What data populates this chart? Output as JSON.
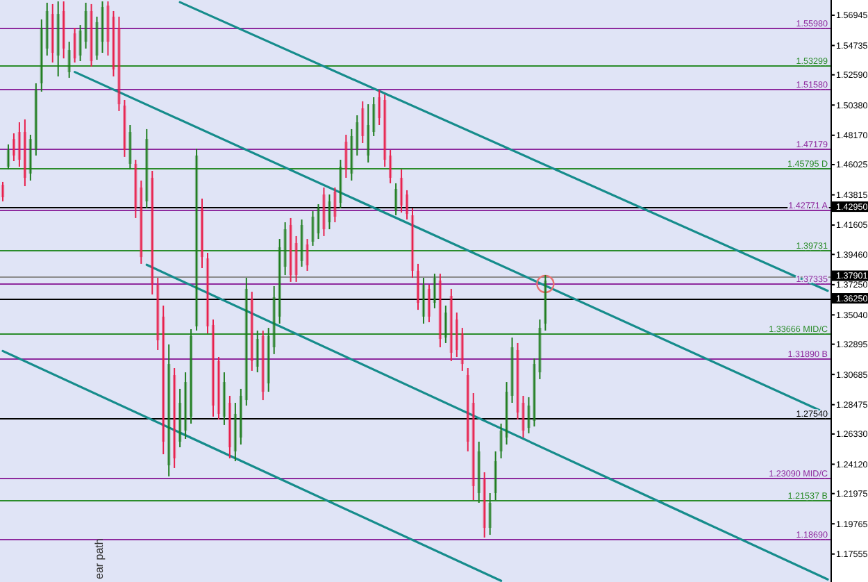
{
  "chart_data": {
    "type": "candlestick",
    "categories": [
      null,
      null,
      null,
      null,
      null,
      null,
      null,
      null,
      null,
      null,
      null,
      null,
      null,
      null,
      null,
      null,
      null,
      null,
      null,
      null,
      null,
      null,
      null,
      null,
      null,
      null,
      null,
      null,
      null,
      null,
      null,
      null,
      null,
      null,
      null,
      null,
      null,
      null,
      null,
      null,
      null,
      null,
      null,
      null,
      null,
      null,
      null,
      null,
      null,
      null,
      null,
      null,
      null,
      null,
      null,
      null,
      null,
      null,
      null,
      null,
      null,
      null,
      null,
      null,
      null,
      null,
      null,
      null,
      null,
      null,
      null,
      null,
      null,
      null,
      null,
      null,
      null,
      null,
      null,
      null,
      null,
      null,
      null,
      null,
      null,
      null,
      null,
      null,
      null,
      null,
      null,
      null,
      null,
      null,
      null,
      null,
      null,
      null,
      null,
      null,
      null,
      null,
      null,
      null,
      null,
      null,
      null,
      null,
      null,
      null,
      null,
      null,
      null,
      null,
      null,
      null,
      null,
      null,
      null,
      null,
      null,
      null,
      null,
      null,
      null,
      null,
      null,
      null,
      null,
      null,
      null,
      null,
      null,
      null,
      null,
      null,
      null,
      null,
      null,
      null,
      null,
      null,
      null,
      null,
      null,
      null,
      null,
      null,
      null,
      null
    ],
    "ohlc": [
      [
        1.4455,
        1.4476,
        1.4334,
        1.4364
      ],
      [
        1.4587,
        1.475,
        1.4567,
        1.4709
      ],
      [
        1.479,
        1.4831,
        1.4628,
        1.4669
      ],
      [
        1.4841,
        1.4912,
        1.4587,
        1.4638
      ],
      [
        1.4841,
        1.4933,
        1.4445,
        1.4506
      ],
      [
        1.4537,
        1.4821,
        1.4486,
        1.479
      ],
      [
        1.4709,
        1.5197,
        1.4669,
        1.5146
      ],
      [
        1.5197,
        1.5664,
        1.5136,
        1.5603
      ],
      [
        1.5451,
        1.5786,
        1.54,
        1.5725
      ],
      [
        1.5704,
        1.5776,
        1.5349,
        1.542
      ],
      [
        1.54,
        1.5796,
        1.5247,
        1.5704
      ],
      [
        1.5725,
        1.5796,
        1.5379,
        1.5451
      ],
      [
        1.5278,
        1.5501,
        1.5237,
        1.544
      ],
      [
        1.5562,
        1.5603,
        1.5349,
        1.5379
      ],
      [
        1.54,
        1.5623,
        1.5359,
        1.5583
      ],
      [
        1.5501,
        1.5786,
        1.5451,
        1.5725
      ],
      [
        1.5725,
        1.5776,
        1.5319,
        1.5359
      ],
      [
        1.54,
        1.5684,
        1.5369,
        1.5644
      ],
      [
        1.5501,
        1.5796,
        1.542,
        1.5755
      ],
      [
        1.5765,
        1.5796,
        1.54,
        1.5501
      ],
      [
        1.5684,
        1.5725,
        1.5247,
        1.5298
      ],
      [
        1.5603,
        1.5684,
        1.4994,
        1.5044
      ],
      [
        1.5034,
        1.5075,
        1.4659,
        1.4709
      ],
      [
        1.4608,
        1.4892,
        1.4567,
        1.4841
      ],
      [
        1.4608,
        1.4638,
        1.4212,
        1.4283
      ],
      [
        1.4435,
        1.4486,
        1.3877,
        1.3927
      ],
      [
        1.4334,
        1.4862,
        1.4283,
        1.479
      ],
      [
        1.4506,
        1.4557,
        1.3653,
        1.3724
      ],
      [
        1.3724,
        1.3775,
        1.3247,
        1.3318
      ],
      [
        1.3491,
        1.3572,
        1.2485,
        1.2577
      ],
      [
        1.2404,
        1.3288,
        1.2323,
        1.3145
      ],
      [
        1.3064,
        1.3115,
        1.2384,
        1.2455
      ],
      [
        1.2577,
        1.2963,
        1.2536,
        1.2861
      ],
      [
        1.2658,
        1.3084,
        1.2597,
        1.3013
      ],
      [
        1.276,
        1.3399,
        1.2709,
        1.3349
      ],
      [
        1.342,
        1.4719,
        1.3389,
        1.4669
      ],
      [
        1.4283,
        1.4354,
        1.3846,
        1.3927
      ],
      [
        1.3917,
        1.3958,
        1.3369,
        1.342
      ],
      [
        1.343,
        1.347,
        1.276,
        1.2841
      ],
      [
        1.3166,
        1.3196,
        1.2739,
        1.278
      ],
      [
        1.276,
        1.3084,
        1.2699,
        1.3013
      ],
      [
        1.2861,
        1.2912,
        1.2455,
        1.2536
      ],
      [
        1.2506,
        1.2861,
        1.2434,
        1.278
      ],
      [
        1.2607,
        1.2963,
        1.2556,
        1.2912
      ],
      [
        1.2881,
        1.3775,
        1.2841,
        1.3694
      ],
      [
        1.3623,
        1.3673,
        1.3095,
        1.3166
      ],
      [
        1.3125,
        1.3389,
        1.3084,
        1.3328
      ],
      [
        1.3349,
        1.3389,
        1.2881,
        1.2942
      ],
      [
        1.3003,
        1.3409,
        1.2942,
        1.3349
      ],
      [
        1.3267,
        1.3714,
        1.3217,
        1.3633
      ],
      [
        1.3491,
        1.4059,
        1.344,
        1.3998
      ],
      [
        1.3856,
        1.4181,
        1.3795,
        1.413
      ],
      [
        1.4161,
        1.4212,
        1.3745,
        1.3795
      ],
      [
        1.4029,
        1.408,
        1.3745,
        1.3795
      ],
      [
        1.3897,
        1.4201,
        1.3856,
        1.4161
      ],
      [
        1.4019,
        1.4059,
        1.3826,
        1.3866
      ],
      [
        1.4039,
        1.4262,
        1.4009,
        1.4222
      ],
      [
        1.41,
        1.4313,
        1.4059,
        1.4283
      ],
      [
        1.4384,
        1.4435,
        1.408,
        1.413
      ],
      [
        1.4181,
        1.4384,
        1.413,
        1.4334
      ],
      [
        1.4405,
        1.4435,
        1.4181,
        1.4222
      ],
      [
        1.4323,
        1.4638,
        1.4283,
        1.4587
      ],
      [
        1.477,
        1.4821,
        1.4506,
        1.4567
      ],
      [
        1.4537,
        1.4862,
        1.4486,
        1.4811
      ],
      [
        1.4709,
        1.4963,
        1.4669,
        1.4912
      ],
      [
        1.5014,
        1.5065,
        1.476,
        1.4811
      ],
      [
        1.4669,
        1.5044,
        1.4618,
        1.4892
      ],
      [
        1.4841,
        1.5095,
        1.4811,
        1.5044
      ],
      [
        1.5095,
        1.5146,
        1.4892,
        1.4943
      ],
      [
        1.5075,
        1.5115,
        1.4587,
        1.4638
      ],
      [
        1.4669,
        1.4709,
        1.4466,
        1.4506
      ],
      [
        1.4262,
        1.4466,
        1.4232,
        1.4425
      ],
      [
        1.4506,
        1.4567,
        1.4252,
        1.4303
      ],
      [
        1.4384,
        1.4415,
        1.4201,
        1.4242
      ],
      [
        1.4232,
        1.4283,
        1.3775,
        1.3826
      ],
      [
        1.3826,
        1.3877,
        1.3541,
        1.3592
      ],
      [
        1.3491,
        1.3775,
        1.344,
        1.3724
      ],
      [
        1.3694,
        1.3724,
        1.345,
        1.3491
      ],
      [
        1.3592,
        1.3805,
        1.3552,
        1.3775
      ],
      [
        1.3755,
        1.3805,
        1.3267,
        1.3328
      ],
      [
        1.3338,
        1.3572,
        1.3298,
        1.3521
      ],
      [
        1.3643,
        1.3694,
        1.3166,
        1.3227
      ],
      [
        1.347,
        1.3521,
        1.3196,
        1.3247
      ],
      [
        1.3369,
        1.3409,
        1.3095,
        1.3145
      ],
      [
        1.3064,
        1.3115,
        1.2506,
        1.2577
      ],
      [
        1.2861,
        1.2932,
        1.215,
        1.2252
      ],
      [
        1.2201,
        1.2577,
        1.213,
        1.2506
      ],
      [
        1.2303,
        1.2353,
        1.1876,
        1.1947
      ],
      [
        1.1947,
        1.2201,
        1.1896,
        1.213
      ],
      [
        1.2201,
        1.2506,
        1.215,
        1.2434
      ],
      [
        1.2506,
        1.2709,
        1.2455,
        1.2658
      ],
      [
        1.2607,
        1.3013,
        1.2556,
        1.2942
      ],
      [
        1.2912,
        1.3338,
        1.2861,
        1.3267
      ],
      [
        1.3247,
        1.3298,
        1.2739,
        1.279
      ],
      [
        1.2861,
        1.2912,
        1.2607,
        1.2658
      ],
      [
        1.2678,
        1.2902,
        1.2638,
        1.2841
      ],
      [
        1.2729,
        1.3186,
        1.2688,
        1.3145
      ],
      [
        1.3084,
        1.347,
        1.3034,
        1.3409
      ],
      [
        1.344,
        1.3795,
        1.3389,
        1.3755
      ],
      null,
      null,
      null,
      null,
      null,
      null,
      null,
      null,
      null,
      null,
      null,
      null,
      null,
      null,
      null,
      null,
      null,
      null,
      null,
      null,
      null,
      null,
      null,
      null,
      null,
      null,
      null,
      null,
      null,
      null,
      null,
      null,
      null,
      null,
      null,
      null,
      null,
      null,
      null,
      null,
      null,
      null,
      null,
      null,
      null,
      null,
      null,
      null,
      null,
      null,
      null
    ],
    "colors": [
      "#e8204c",
      "#1e7d1e",
      "#e8204c",
      "#e8204c",
      "#e8204c",
      "#1e7d1e",
      "#1e7d1e",
      "#1e7d1e",
      "#1e7d1e",
      "#e8204c",
      "#1e7d1e",
      "#e8204c",
      "#1e7d1e",
      "#e8204c",
      "#1e7d1e",
      "#1e7d1e",
      "#e8204c",
      "#1e7d1e",
      "#1e7d1e",
      "#e8204c",
      "#e8204c",
      "#e8204c",
      "#e8204c",
      "#1e7d1e",
      "#e8204c",
      "#e8204c",
      "#1e7d1e",
      "#e8204c",
      "#e8204c",
      "#e8204c",
      "#1e7d1e",
      "#e8204c",
      "#1e7d1e",
      "#1e7d1e",
      "#1e7d1e",
      "#1e7d1e",
      "#e8204c",
      "#e8204c",
      "#e8204c",
      "#e8204c",
      "#1e7d1e",
      "#e8204c",
      "#1e7d1e",
      "#1e7d1e",
      "#1e7d1e",
      "#e8204c",
      "#1e7d1e",
      "#e8204c",
      "#1e7d1e",
      "#1e7d1e",
      "#1e7d1e",
      "#1e7d1e",
      "#e8204c",
      "#e8204c",
      "#1e7d1e",
      "#e8204c",
      "#1e7d1e",
      "#1e7d1e",
      "#e8204c",
      "#1e7d1e",
      "#e8204c",
      "#1e7d1e",
      "#e8204c",
      "#1e7d1e",
      "#1e7d1e",
      "#e8204c",
      "#1e7d1e",
      "#1e7d1e",
      "#e8204c",
      "#e8204c",
      "#e8204c",
      "#1e7d1e",
      "#e8204c",
      "#e8204c",
      "#e8204c",
      "#e8204c",
      "#1e7d1e",
      "#e8204c",
      "#1e7d1e",
      "#e8204c",
      "#1e7d1e",
      "#e8204c",
      "#e8204c",
      "#e8204c",
      "#e8204c",
      "#e8204c",
      "#1e7d1e",
      "#e8204c",
      "#1e7d1e",
      "#1e7d1e",
      "#1e7d1e",
      "#1e7d1e",
      "#1e7d1e",
      "#e8204c",
      "#e8204c",
      "#1e7d1e",
      "#1e7d1e",
      "#1e7d1e",
      "#1e7d1e",
      null,
      null,
      null,
      null,
      null,
      null,
      null,
      null,
      null,
      null,
      null,
      null,
      null,
      null,
      null,
      null,
      null,
      null,
      null,
      null,
      null,
      null,
      null,
      null,
      null,
      null,
      null,
      null,
      null,
      null,
      null,
      null,
      null,
      null,
      null,
      null,
      null,
      null,
      null,
      null,
      null,
      null,
      null,
      null,
      null,
      null,
      null,
      null,
      null,
      null,
      null
    ],
    "ylim": [
      1.1551,
      1.5806
    ],
    "yticks": [
      1.56945,
      1.54735,
      {
        "value": 1.5259,
        "label": "1.52590"
      },
      {
        "value": 1.5038,
        "label": "1.50380"
      },
      {
        "value": 1.4817,
        "label": "1.48170"
      },
      1.46025,
      1.43815,
      {
        "value": 1.4295,
        "label": "1.42950"
      },
      1.41605,
      {
        "value": 1.3946,
        "label": "1.39460"
      },
      1.37901,
      {
        "value": 1.3725,
        "label": "1.37250"
      },
      {
        "value": 1.3625,
        "label": "1.36250"
      },
      {
        "value": 1.3504,
        "label": "1.35040"
      },
      1.32895,
      1.30685,
      1.28475,
      {
        "value": 1.2633,
        "label": "1.26330"
      },
      {
        "value": 1.2412,
        "label": "1.24120"
      },
      1.21975,
      1.19765,
      1.17555
    ],
    "tick_labels": "y",
    "ref_lines": [
      {
        "axis": "y",
        "value": 1.5598,
        "label": "1.55980",
        "color": "#8e2a9e"
      },
      {
        "axis": "y",
        "value": 1.53299,
        "label": "1.53299",
        "color": "#2b8c2b"
      },
      {
        "axis": "y",
        "value": 1.5158,
        "label": "1.51580",
        "color": "#8e2a9e"
      },
      {
        "axis": "y",
        "value": 1.47179,
        "label": "1.47179",
        "color": "#8e2a9e"
      },
      {
        "axis": "y",
        "value": 1.45795,
        "label": "1.45795 D",
        "color": "#2b8c2b"
      },
      {
        "axis": "y",
        "value": 1.4295,
        "color": "#000000"
      },
      {
        "axis": "y",
        "value": 1.42771,
        "label": "1.42771 A",
        "color": "#8e2a9e"
      },
      {
        "axis": "y",
        "value": 1.39731,
        "label": "1.39731",
        "color": "#2b8c2b"
      },
      {
        "axis": "y",
        "value": 1.37901,
        "color": "#8c8c8c"
      },
      {
        "axis": "y",
        "value": 1.37335,
        "label": "1.37335",
        "color": "#8e2a9e"
      },
      {
        "axis": "y",
        "value": 1.3625,
        "color": "#000000"
      },
      {
        "axis": "y",
        "value": 1.33666,
        "label": "1.33666 MID/C",
        "color": "#2b8c2b"
      },
      {
        "axis": "y",
        "value": 1.3189,
        "label": "1.31890 B",
        "color": "#8e2a9e"
      },
      {
        "axis": "y",
        "value": 1.2754,
        "label": "1.27540",
        "color": "#000000"
      },
      {
        "axis": "y",
        "value": 1.2309,
        "label": "1.23090 MID/C",
        "color": "#8e2a9e"
      },
      {
        "axis": "y",
        "value": 1.21537,
        "label": "1.21537 B",
        "color": "#2b8c2b"
      },
      {
        "axis": "y",
        "value": 1.1869,
        "label": "1.18690",
        "color": "#8e2a9e"
      }
    ],
    "annotations": [
      "ear path"
    ],
    "series": [
      {
        "type": "line",
        "color": "#168c8c",
        "values": [
          null,
          null,
          null,
          null,
          null,
          null,
          null,
          null,
          null,
          null,
          null,
          null,
          null,
          null,
          null,
          null,
          null,
          null,
          null,
          null,
          null,
          null,
          null,
          null,
          null,
          null,
          null,
          null,
          null,
          null,
          null,
          null,
          1.579,
          null,
          null,
          null,
          null,
          null,
          null,
          null,
          null,
          null,
          null,
          null,
          null,
          null,
          null,
          null,
          null,
          null,
          null,
          null,
          null,
          null,
          null,
          null,
          null,
          null,
          null,
          null,
          null,
          null,
          null,
          null,
          null,
          null,
          null,
          null,
          null,
          null,
          null,
          null,
          null,
          null,
          null,
          null,
          null,
          null,
          null,
          null,
          null,
          null,
          null,
          null,
          null,
          null,
          null,
          null,
          null,
          null,
          null,
          null,
          null,
          null,
          null,
          null,
          null,
          null,
          null,
          null,
          null,
          null,
          null,
          null,
          null,
          null,
          null,
          null,
          null,
          null,
          null,
          null,
          null,
          null,
          null,
          null,
          null,
          null,
          null,
          null,
          null,
          null,
          null,
          null,
          null,
          null,
          null,
          null,
          null,
          null,
          null,
          null,
          null,
          null,
          null,
          null,
          null,
          null,
          null,
          null,
          null,
          null,
          null,
          null,
          null,
          null,
          null,
          null,
          null,
          1.368
        ]
      },
      {
        "type": "line",
        "color": "#168c8c",
        "values": [
          null,
          null,
          null,
          null,
          null,
          null,
          null,
          null,
          null,
          null,
          null,
          null,
          null,
          1.528,
          null,
          null,
          null,
          null,
          null,
          null,
          null,
          null,
          null,
          null,
          null,
          null,
          null,
          null,
          null,
          null,
          null,
          null,
          null,
          null,
          null,
          null,
          null,
          null,
          null,
          null,
          null,
          null,
          null,
          null,
          null,
          null,
          null,
          null,
          null,
          null,
          null,
          null,
          null,
          null,
          null,
          null,
          null,
          null,
          null,
          null,
          null,
          null,
          null,
          null,
          null,
          null,
          null,
          null,
          null,
          null,
          null,
          null,
          null,
          null,
          null,
          null,
          null,
          null,
          null,
          null,
          null,
          null,
          null,
          null,
          null,
          null,
          null,
          null,
          null,
          null,
          null,
          null,
          null,
          null,
          null,
          null,
          null,
          null,
          null,
          null,
          null,
          null,
          null,
          null,
          null,
          null,
          null,
          null,
          null,
          null,
          null,
          null,
          null,
          null,
          null,
          null,
          null,
          null,
          null,
          null,
          null,
          null,
          null,
          null,
          null,
          null,
          null,
          null,
          null,
          null,
          null,
          null,
          null,
          null,
          null,
          null,
          null,
          null,
          null,
          null,
          null,
          null,
          null,
          null,
          null,
          null,
          null,
          null,
          null,
          1.278
        ]
      },
      {
        "type": "line",
        "color": "#168c8c",
        "values": [
          null,
          null,
          null,
          null,
          null,
          null,
          null,
          null,
          null,
          null,
          null,
          null,
          null,
          null,
          null,
          null,
          null,
          null,
          null,
          null,
          null,
          null,
          null,
          null,
          null,
          null,
          1.387,
          null,
          null,
          null,
          null,
          null,
          null,
          null,
          null,
          null,
          null,
          null,
          null,
          null,
          null,
          null,
          null,
          null,
          null,
          null,
          null,
          null,
          null,
          null,
          null,
          null,
          null,
          null,
          null,
          null,
          null,
          null,
          null,
          null,
          null,
          null,
          null,
          null,
          null,
          null,
          null,
          null,
          null,
          null,
          null,
          null,
          null,
          null,
          null,
          null,
          null,
          null,
          null,
          null,
          null,
          null,
          null,
          null,
          null,
          null,
          null,
          null,
          null,
          null,
          null,
          null,
          null,
          null,
          null,
          null,
          null,
          null,
          null,
          null,
          null,
          null,
          null,
          null,
          null,
          null,
          null,
          null,
          null,
          null,
          null,
          null,
          null,
          null,
          null,
          null,
          null,
          null,
          null,
          null,
          null,
          null,
          null,
          null,
          null,
          null,
          null,
          null,
          null,
          null,
          null,
          null,
          null,
          null,
          null,
          null,
          null,
          null,
          null,
          null,
          null,
          null,
          null,
          null,
          null,
          null,
          null,
          null,
          null,
          1.157
        ]
      },
      {
        "type": "line",
        "color": "#168c8c",
        "values": [
          1.324,
          null,
          null,
          null,
          null,
          null,
          null,
          null,
          null,
          null,
          null,
          null,
          null,
          null,
          null,
          null,
          null,
          null,
          null,
          null,
          null,
          null,
          null,
          null,
          null,
          null,
          null,
          null,
          null,
          null,
          null,
          null,
          null,
          null,
          null,
          null,
          null,
          null,
          null,
          null,
          null,
          null,
          null,
          null,
          null,
          null,
          null,
          null,
          null,
          null,
          null,
          null,
          null,
          null,
          null,
          null,
          null,
          null,
          null,
          null,
          null,
          null,
          null,
          null,
          null,
          null,
          null,
          null,
          null,
          null,
          null,
          null,
          null,
          null,
          null,
          null,
          null,
          null,
          null,
          null,
          null,
          null,
          null,
          null,
          null,
          null,
          null,
          null,
          null,
          null,
          1.156,
          null,
          null,
          null,
          null,
          null,
          null,
          null,
          null,
          null,
          null,
          null,
          null,
          null,
          null,
          null,
          null,
          null,
          null,
          null,
          null,
          null,
          null,
          null,
          null,
          null,
          null,
          null,
          null,
          null,
          null,
          null,
          null,
          null,
          null,
          null,
          null,
          null,
          null,
          null,
          null,
          null,
          null,
          null,
          null,
          null,
          null,
          null,
          null,
          null,
          null,
          null,
          null,
          null,
          null,
          null,
          null,
          null,
          null,
          null
        ]
      },
      {
        "type": "scatter",
        "color": "#e87070",
        "marker": "circle",
        "values": [
          null,
          null,
          null,
          null,
          null,
          null,
          null,
          null,
          null,
          null,
          null,
          null,
          null,
          null,
          null,
          null,
          null,
          null,
          null,
          null,
          null,
          null,
          null,
          null,
          null,
          null,
          null,
          null,
          null,
          null,
          null,
          null,
          null,
          null,
          null,
          null,
          null,
          null,
          null,
          null,
          null,
          null,
          null,
          null,
          null,
          null,
          null,
          null,
          null,
          null,
          null,
          null,
          null,
          null,
          null,
          null,
          null,
          null,
          null,
          null,
          null,
          null,
          null,
          null,
          null,
          null,
          null,
          null,
          null,
          null,
          null,
          null,
          null,
          null,
          null,
          null,
          null,
          null,
          null,
          null,
          null,
          null,
          null,
          null,
          null,
          null,
          null,
          null,
          null,
          null,
          null,
          null,
          null,
          null,
          null,
          null,
          null,
          null,
          1.373,
          null,
          null,
          null,
          null,
          null,
          null,
          null,
          null,
          null,
          null,
          null,
          null,
          null,
          null,
          null,
          null,
          null,
          null,
          null,
          null,
          null,
          null,
          null,
          null,
          null,
          null,
          null,
          null,
          null,
          null,
          null,
          null,
          null,
          null,
          null,
          null,
          null,
          null,
          null,
          null,
          null,
          null,
          null,
          null,
          null,
          null,
          null,
          null,
          null,
          null,
          null
        ]
      }
    ]
  }
}
